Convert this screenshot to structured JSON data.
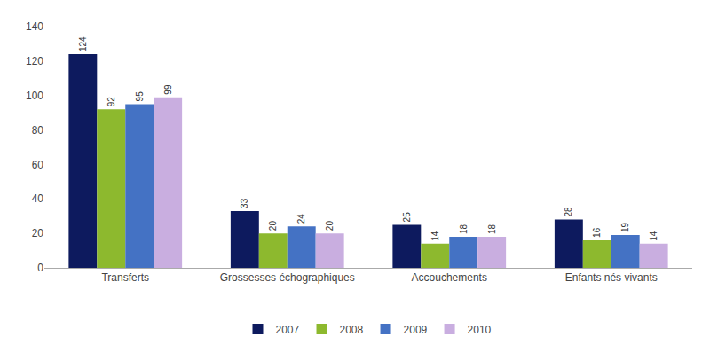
{
  "chart_data": {
    "type": "bar",
    "categories": [
      "Transferts",
      "Grossesses échographiques",
      "Accouchements",
      "Enfants nés vivants"
    ],
    "series": [
      {
        "name": "2007",
        "color": "#0d1a5e",
        "values": [
          124,
          33,
          25,
          28
        ]
      },
      {
        "name": "2008",
        "color": "#8db92e",
        "values": [
          92,
          20,
          14,
          16
        ]
      },
      {
        "name": "2009",
        "color": "#4472c4",
        "values": [
          95,
          24,
          18,
          19
        ]
      },
      {
        "name": "2010",
        "color": "#c9aee0",
        "values": [
          99,
          20,
          18,
          14
        ]
      }
    ],
    "ylim": [
      0,
      140
    ],
    "yticks": [
      0,
      20,
      40,
      60,
      80,
      100,
      120,
      140
    ],
    "grid": false,
    "legend": "bottom",
    "data_labels": true
  }
}
